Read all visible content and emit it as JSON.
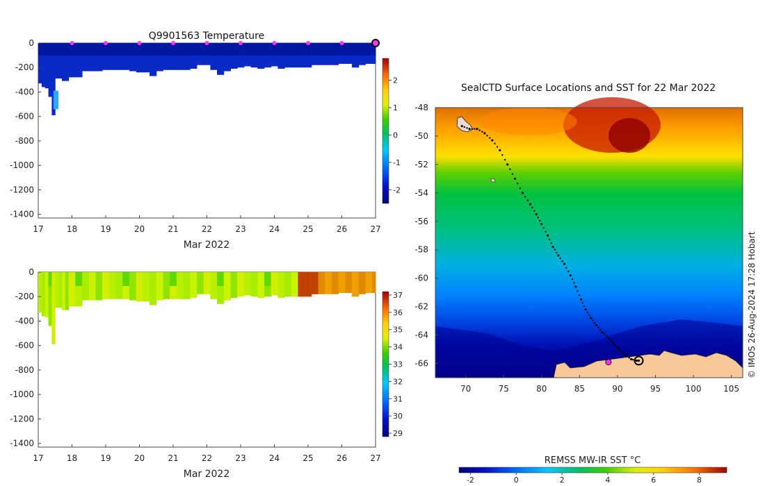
{
  "temperature_panel": {
    "title": "Q9901563  Temperature",
    "xlabel": "Mar 2022",
    "xticks": [
      "17",
      "18",
      "19",
      "20",
      "21",
      "22",
      "23",
      "24",
      "25",
      "26",
      "27"
    ],
    "yticks": [
      "0",
      "-200",
      "-400",
      "-600",
      "-800",
      "-1000",
      "-1200",
      "-1400"
    ],
    "colorbar_ticks": [
      "2",
      "1",
      "0",
      "-1",
      "-2"
    ]
  },
  "salinity_panel": {
    "xlabel": "Mar 2022",
    "xticks": [
      "17",
      "18",
      "19",
      "20",
      "21",
      "22",
      "23",
      "24",
      "25",
      "26",
      "27"
    ],
    "yticks": [
      "0",
      "-200",
      "-400",
      "-600",
      "-800",
      "-1000",
      "-1200",
      "-1400"
    ],
    "colorbar_ticks": [
      "37",
      "36",
      "35",
      "34",
      "33",
      "32",
      "31",
      "30",
      "29"
    ]
  },
  "map_panel": {
    "title": "SealCTD Surface Locations and SST for 22 Mar 2022",
    "xticks": [
      "70",
      "75",
      "80",
      "85",
      "90",
      "95",
      "100",
      "105"
    ],
    "yticks": [
      "-48",
      "-50",
      "-52",
      "-54",
      "-56",
      "-58",
      "-60",
      "-62",
      "-64",
      "-66"
    ],
    "colorbar_label": "REMSS MW-IR SST °C",
    "colorbar_ticks": [
      "-2",
      "0",
      "2",
      "4",
      "6",
      "8"
    ],
    "credit": "© IMOS 26-Aug-2024 17:28 Hobart"
  },
  "colors": {
    "land": "#f8c898",
    "marker": "#ff33ff",
    "track": "#000000"
  },
  "chart_data": [
    {
      "type": "heatmap",
      "title": "Q9901563  Temperature",
      "xlabel": "Mar 2022",
      "ylabel": "",
      "xlim": [
        17,
        27
      ],
      "ylim": [
        -1430,
        0
      ],
      "colorbar_range": [
        -2.5,
        2.8
      ],
      "profile_days": [
        17.1,
        17.2,
        17.3,
        17.4,
        17.5,
        17.6,
        17.7,
        17.8,
        17.9,
        18.0,
        18.2,
        18.4,
        18.6,
        18.8,
        19.0,
        19.2,
        19.4,
        19.6,
        19.8,
        20.0,
        20.2,
        20.4,
        20.6,
        20.8,
        21.0,
        21.2,
        21.4,
        21.6,
        21.8,
        22.0,
        22.2,
        22.4,
        22.6,
        22.8,
        23.0,
        23.2,
        23.4,
        23.6,
        23.8,
        24.0,
        24.2,
        24.4,
        24.6,
        24.8,
        25.0,
        25.2,
        25.4,
        25.6,
        25.8,
        26.0,
        26.2,
        26.4,
        26.6,
        26.8,
        27.0
      ],
      "profile_max_depths": [
        -330,
        -360,
        -370,
        -440,
        -590,
        -290,
        -290,
        -310,
        -310,
        -280,
        -280,
        -230,
        -230,
        -230,
        -220,
        -220,
        -220,
        -220,
        -230,
        -240,
        -240,
        -270,
        -230,
        -220,
        -220,
        -220,
        -220,
        -210,
        -180,
        -180,
        -220,
        -260,
        -230,
        -210,
        -200,
        -190,
        -200,
        -210,
        -200,
        -190,
        -210,
        -200,
        -200,
        -200,
        -200,
        -180,
        -180,
        -180,
        -180,
        -170,
        -170,
        -200,
        -180,
        -170,
        -170
      ],
      "surface_temperature": -2.1,
      "deep_temperature_range": [
        -1.6,
        -0.4
      ],
      "magenta_marker_days": [
        18,
        19,
        20,
        21,
        22,
        23,
        24,
        25,
        26,
        27
      ]
    },
    {
      "type": "heatmap",
      "title": "",
      "xlabel": "Mar 2022",
      "ylabel": "",
      "xlim": [
        17,
        27
      ],
      "ylim": [
        -1430,
        0
      ],
      "colorbar_range": [
        28.8,
        37.2
      ],
      "profile_days": [
        17.1,
        17.2,
        17.3,
        17.4,
        17.5,
        17.6,
        17.7,
        17.8,
        17.9,
        18.0,
        18.2,
        18.4,
        18.6,
        18.8,
        19.0,
        19.2,
        19.4,
        19.6,
        19.8,
        20.0,
        20.2,
        20.4,
        20.6,
        20.8,
        21.0,
        21.2,
        21.4,
        21.6,
        21.8,
        22.0,
        22.2,
        22.4,
        22.6,
        22.8,
        23.0,
        23.2,
        23.4,
        23.6,
        23.8,
        24.0,
        24.2,
        24.4,
        24.6,
        24.8,
        25.0,
        25.2,
        25.4,
        25.6,
        25.8,
        26.0,
        26.2,
        26.4,
        26.6,
        26.8,
        27.0
      ],
      "profile_max_depths": [
        -330,
        -360,
        -370,
        -440,
        -590,
        -290,
        -290,
        -310,
        -310,
        -280,
        -280,
        -230,
        -230,
        -230,
        -220,
        -220,
        -220,
        -220,
        -230,
        -240,
        -240,
        -270,
        -230,
        -220,
        -220,
        -220,
        -220,
        -210,
        -180,
        -180,
        -220,
        -260,
        -230,
        -210,
        -200,
        -190,
        -200,
        -210,
        -200,
        -190,
        -210,
        -200,
        -200,
        -200,
        -200,
        -180,
        -180,
        -180,
        -180,
        -170,
        -170,
        -200,
        -180,
        -170,
        -170
      ],
      "salinity_before_day_24_8": [
        33.8,
        34.5
      ],
      "salinity_after_day_24_8": [
        35.5,
        36.8
      ]
    },
    {
      "type": "scatter",
      "title": "SealCTD Surface Locations and SST for 22 Mar 2022",
      "xlabel": "",
      "ylabel": "",
      "xlim": [
        66,
        106.5
      ],
      "ylim": [
        -67,
        -48
      ],
      "colorbar_range": [
        -2.5,
        9.2
      ],
      "track_lon": [
        69.5,
        70.5,
        71.5,
        72.5,
        73.5,
        74.5,
        75.5,
        76.5,
        77.5,
        78.5,
        79.3,
        80.0,
        80.8,
        81.5,
        82.2,
        83.0,
        83.8,
        84.5,
        85.2,
        85.8,
        86.5,
        87.2,
        88.0,
        88.8,
        89.5,
        90.2,
        91.0,
        91.8,
        92.5,
        92.8
      ],
      "track_lat": [
        -49.3,
        -49.5,
        -49.5,
        -49.8,
        -50.3,
        -51.0,
        -52.0,
        -53.0,
        -54.0,
        -54.8,
        -55.5,
        -56.2,
        -57.0,
        -57.8,
        -58.4,
        -59.0,
        -59.8,
        -60.6,
        -61.5,
        -62.2,
        -62.8,
        -63.3,
        -63.8,
        -64.2,
        -64.6,
        -65.0,
        -65.4,
        -65.7,
        -65.8,
        -65.8
      ],
      "highlight_point": {
        "lon": 88.8,
        "lat": -65.9
      }
    }
  ]
}
